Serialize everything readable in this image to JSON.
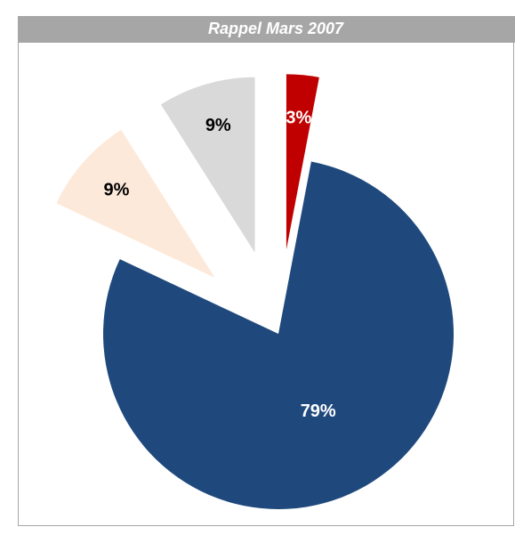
{
  "chart_data": {
    "type": "pie",
    "title": "Rappel Mars 2007",
    "categories": [
      null,
      null,
      null,
      null
    ],
    "values": [
      3,
      79,
      9,
      9
    ],
    "value_labels": [
      "3%",
      "79%",
      "9%",
      "9%"
    ],
    "colors": [
      "#c00000",
      "#1f497d",
      "#fde9d9",
      "#d9d9d9"
    ]
  }
}
